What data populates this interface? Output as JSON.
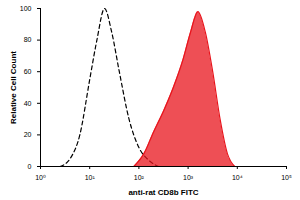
{
  "chart_data": {
    "type": "line",
    "x_label": "anti-rat CD8b FITC",
    "y_label": "Relative Cell Count",
    "log": "x",
    "xlim": [
      1,
      100000
    ],
    "xticks": [
      {
        "value": 1,
        "label": "10⁰"
      },
      {
        "value": 10,
        "label": "10¹"
      },
      {
        "value": 100,
        "label": "10²"
      },
      {
        "value": 1000,
        "label": "10³"
      },
      {
        "value": 10000,
        "label": "10⁴"
      },
      {
        "value": 100000,
        "label": "10⁵"
      }
    ],
    "ylim": [
      0,
      100
    ],
    "yticks": [
      0,
      20,
      40,
      60,
      80,
      100
    ],
    "series": [
      {
        "type": "line",
        "line_style": "dashed",
        "color": "#000000",
        "x": [
          2.5,
          4,
          6.3,
          10,
          14,
          20,
          28,
          40,
          63,
          100,
          158,
          251
        ],
        "values": [
          0,
          5,
          20,
          55,
          80,
          100,
          85,
          60,
          30,
          12,
          4,
          0
        ]
      },
      {
        "type": "area",
        "line_style": "solid",
        "color": "#e8141c",
        "x": [
          79,
          126,
          200,
          316,
          501,
          794,
          1122,
          1585,
          2239,
          3162,
          4467,
          6310,
          8913
        ],
        "values": [
          0,
          8,
          22,
          35,
          50,
          68,
          85,
          98,
          85,
          60,
          30,
          8,
          0
        ]
      }
    ]
  }
}
